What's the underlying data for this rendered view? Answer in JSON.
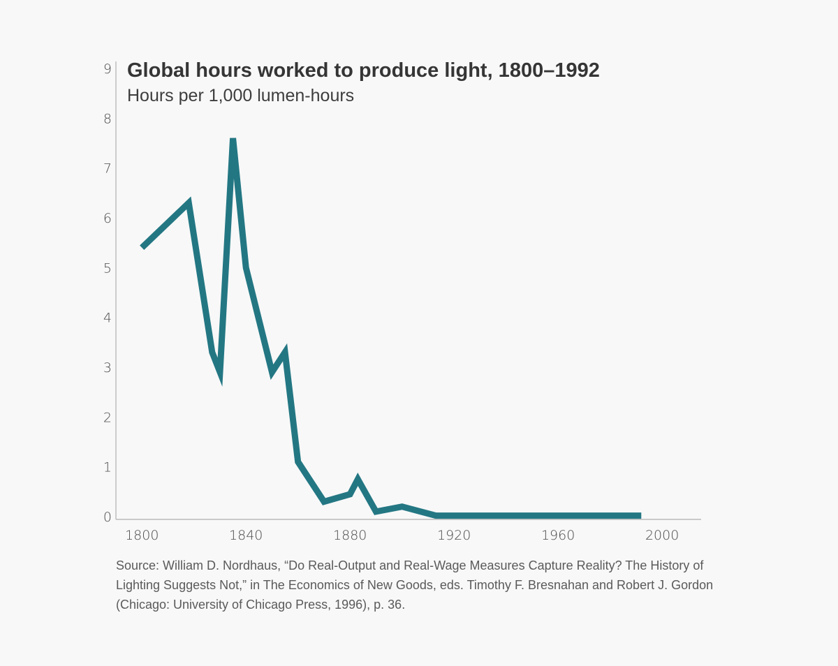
{
  "chart_data": {
    "type": "line",
    "title": "Global hours worked to produce light, 1800–1992",
    "subtitle": "Hours per 1,000 lumen-hours",
    "xlabel": "",
    "ylabel": "",
    "xlim": [
      1790,
      2015
    ],
    "ylim": [
      0,
      9
    ],
    "x_ticks": [
      1800,
      1840,
      1880,
      1920,
      1960,
      2000
    ],
    "y_ticks": [
      0,
      1,
      2,
      3,
      4,
      5,
      6,
      7,
      8,
      9
    ],
    "grid": false,
    "series": [
      {
        "color": "#237783",
        "x": [
          1800,
          1818,
          1827,
          1830,
          1835,
          1840,
          1850,
          1855,
          1860,
          1870,
          1880,
          1883,
          1890,
          1900,
          1913,
          1920,
          1940,
          1960,
          1980,
          1992
        ],
        "y": [
          5.4,
          6.3,
          3.3,
          2.9,
          7.6,
          5.0,
          2.9,
          3.3,
          1.1,
          0.3,
          0.45,
          0.75,
          0.1,
          0.2,
          0.02,
          0.02,
          0.02,
          0.02,
          0.02,
          0.02
        ]
      }
    ]
  },
  "source": "Source: William D. Nordhaus, “Do Real-Output and Real-Wage Measures Capture Reality? The History of Lighting Suggests Not,” in The Economics of New Goods, eds. Timothy F. Bresnahan and Robert J. Gordon (Chicago: University of Chicago Press, 1996), p. 36."
}
